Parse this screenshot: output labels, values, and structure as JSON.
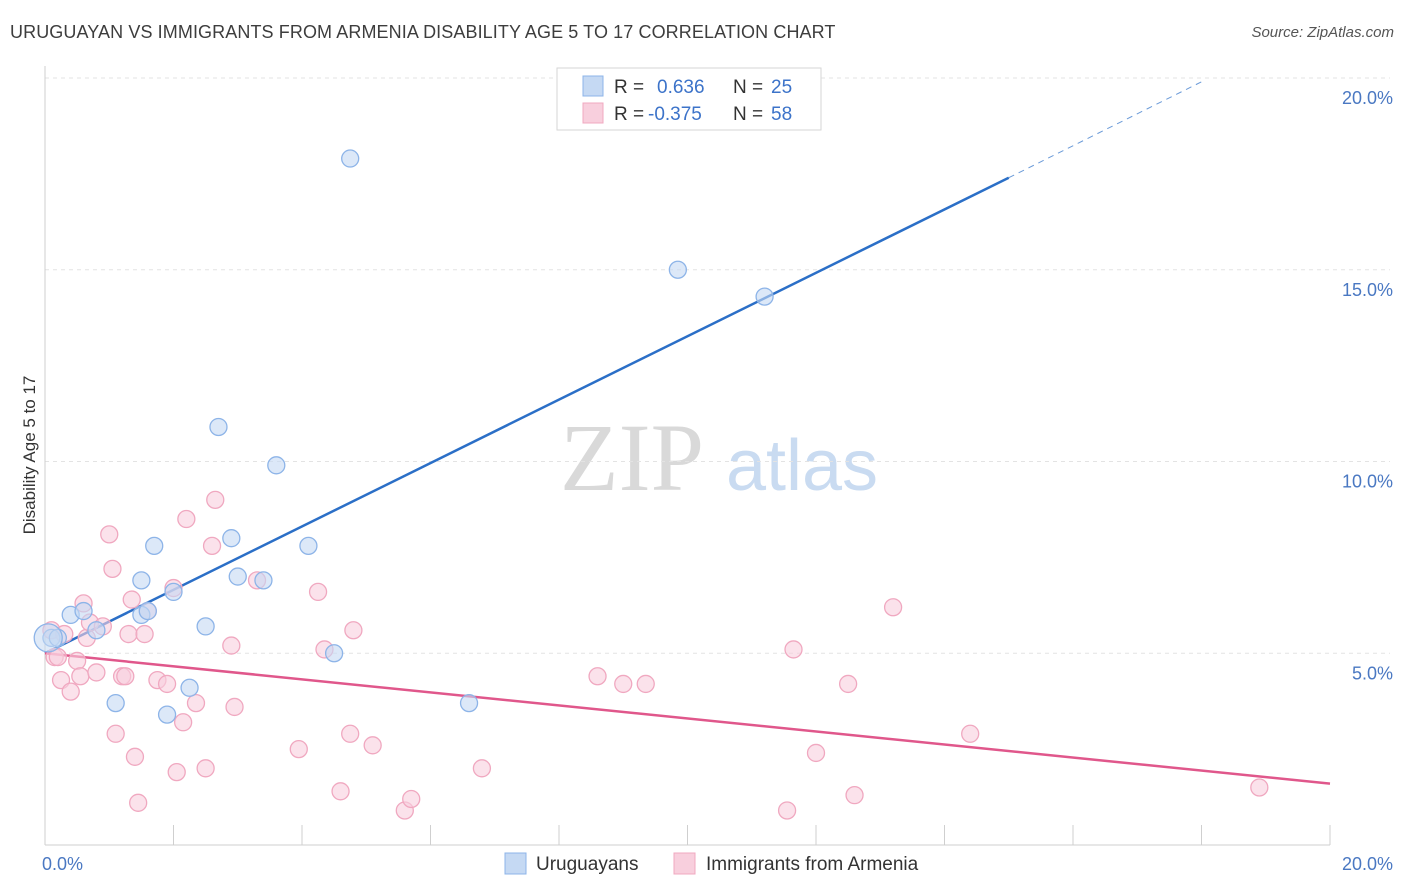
{
  "title": "URUGUAYAN VS IMMIGRANTS FROM ARMENIA DISABILITY AGE 5 TO 17 CORRELATION CHART",
  "source": "Source: ZipAtlas.com",
  "watermark": {
    "zip": "ZIP",
    "atlas": "atlas"
  },
  "chart_data": {
    "type": "scatter",
    "title": "URUGUAYAN VS IMMIGRANTS FROM ARMENIA DISABILITY AGE 5 TO 17 CORRELATION CHART",
    "xlabel": "",
    "ylabel": "Disability Age 5 to 17",
    "xlim": [
      0,
      20
    ],
    "ylim": [
      0,
      20
    ],
    "x_ticks": [
      {
        "value": 0,
        "label": "0.0%"
      },
      {
        "value": 20,
        "label": "20.0%"
      }
    ],
    "y_ticks": [
      {
        "value": 5,
        "label": "5.0%"
      },
      {
        "value": 10,
        "label": "10.0%"
      },
      {
        "value": 15,
        "label": "15.0%"
      },
      {
        "value": 20,
        "label": "20.0%"
      }
    ],
    "legend_position": "top-center",
    "series": [
      {
        "name": "Uruguayans",
        "color": "#8db4e8",
        "fill": "#c5d9f3",
        "line_color": "#2b6fc7",
        "R": "0.636",
        "N": "25",
        "trend": {
          "x0": 0,
          "y0": 5.0,
          "x1": 15.0,
          "y1": 17.4,
          "dash_to_x": 18.0,
          "dash_to_y": 19.9
        },
        "points": [
          [
            0.1,
            5.4
          ],
          [
            0.2,
            5.4
          ],
          [
            0.4,
            6.0
          ],
          [
            0.6,
            6.1
          ],
          [
            0.8,
            5.6
          ],
          [
            1.1,
            3.7
          ],
          [
            1.5,
            6.0
          ],
          [
            1.6,
            6.1
          ],
          [
            1.5,
            6.9
          ],
          [
            1.7,
            7.8
          ],
          [
            1.9,
            3.4
          ],
          [
            2.0,
            6.6
          ],
          [
            2.25,
            4.1
          ],
          [
            2.5,
            5.7
          ],
          [
            2.7,
            10.9
          ],
          [
            2.9,
            8.0
          ],
          [
            3.0,
            7.0
          ],
          [
            3.4,
            6.9
          ],
          [
            3.6,
            9.9
          ],
          [
            4.1,
            7.8
          ],
          [
            4.5,
            5.0
          ],
          [
            4.75,
            17.9
          ],
          [
            6.6,
            3.7
          ],
          [
            9.85,
            15.0
          ],
          [
            11.2,
            14.3
          ]
        ]
      },
      {
        "name": "Immigrants from Armenia",
        "color": "#f0a8c0",
        "fill": "#f8cfdd",
        "line_color": "#e0578b",
        "R": "-0.375",
        "N": "58",
        "trend": {
          "x0": 0,
          "y0": 5.0,
          "x1": 20,
          "y1": 1.6
        },
        "points": [
          [
            0.1,
            5.6
          ],
          [
            0.15,
            4.9
          ],
          [
            0.2,
            4.9
          ],
          [
            0.25,
            4.3
          ],
          [
            0.3,
            5.5
          ],
          [
            0.4,
            4.0
          ],
          [
            0.5,
            4.8
          ],
          [
            0.55,
            4.4
          ],
          [
            0.6,
            6.3
          ],
          [
            0.65,
            5.4
          ],
          [
            0.7,
            5.8
          ],
          [
            0.8,
            4.5
          ],
          [
            0.9,
            5.7
          ],
          [
            1.0,
            8.1
          ],
          [
            1.05,
            7.2
          ],
          [
            1.1,
            2.9
          ],
          [
            1.2,
            4.4
          ],
          [
            1.25,
            4.4
          ],
          [
            1.3,
            5.5
          ],
          [
            1.35,
            6.4
          ],
          [
            1.4,
            2.3
          ],
          [
            1.45,
            1.1
          ],
          [
            1.55,
            5.5
          ],
          [
            1.6,
            6.1
          ],
          [
            1.75,
            4.3
          ],
          [
            1.9,
            4.2
          ],
          [
            2.0,
            6.7
          ],
          [
            2.05,
            1.9
          ],
          [
            2.15,
            3.2
          ],
          [
            2.2,
            8.5
          ],
          [
            2.35,
            3.7
          ],
          [
            2.5,
            2.0
          ],
          [
            2.6,
            7.8
          ],
          [
            2.65,
            9.0
          ],
          [
            2.9,
            5.2
          ],
          [
            2.95,
            3.6
          ],
          [
            3.3,
            6.9
          ],
          [
            3.95,
            2.5
          ],
          [
            4.25,
            6.6
          ],
          [
            4.35,
            5.1
          ],
          [
            4.6,
            1.4
          ],
          [
            4.75,
            2.9
          ],
          [
            4.8,
            5.6
          ],
          [
            5.1,
            2.6
          ],
          [
            5.6,
            0.9
          ],
          [
            5.7,
            1.2
          ],
          [
            6.8,
            2.0
          ],
          [
            8.6,
            4.4
          ],
          [
            9.0,
            4.2
          ],
          [
            9.35,
            4.2
          ],
          [
            11.55,
            0.9
          ],
          [
            11.65,
            5.1
          ],
          [
            12.0,
            2.4
          ],
          [
            12.5,
            4.2
          ],
          [
            12.6,
            1.3
          ],
          [
            13.2,
            6.2
          ],
          [
            14.4,
            2.9
          ],
          [
            18.9,
            1.5
          ]
        ]
      }
    ]
  }
}
